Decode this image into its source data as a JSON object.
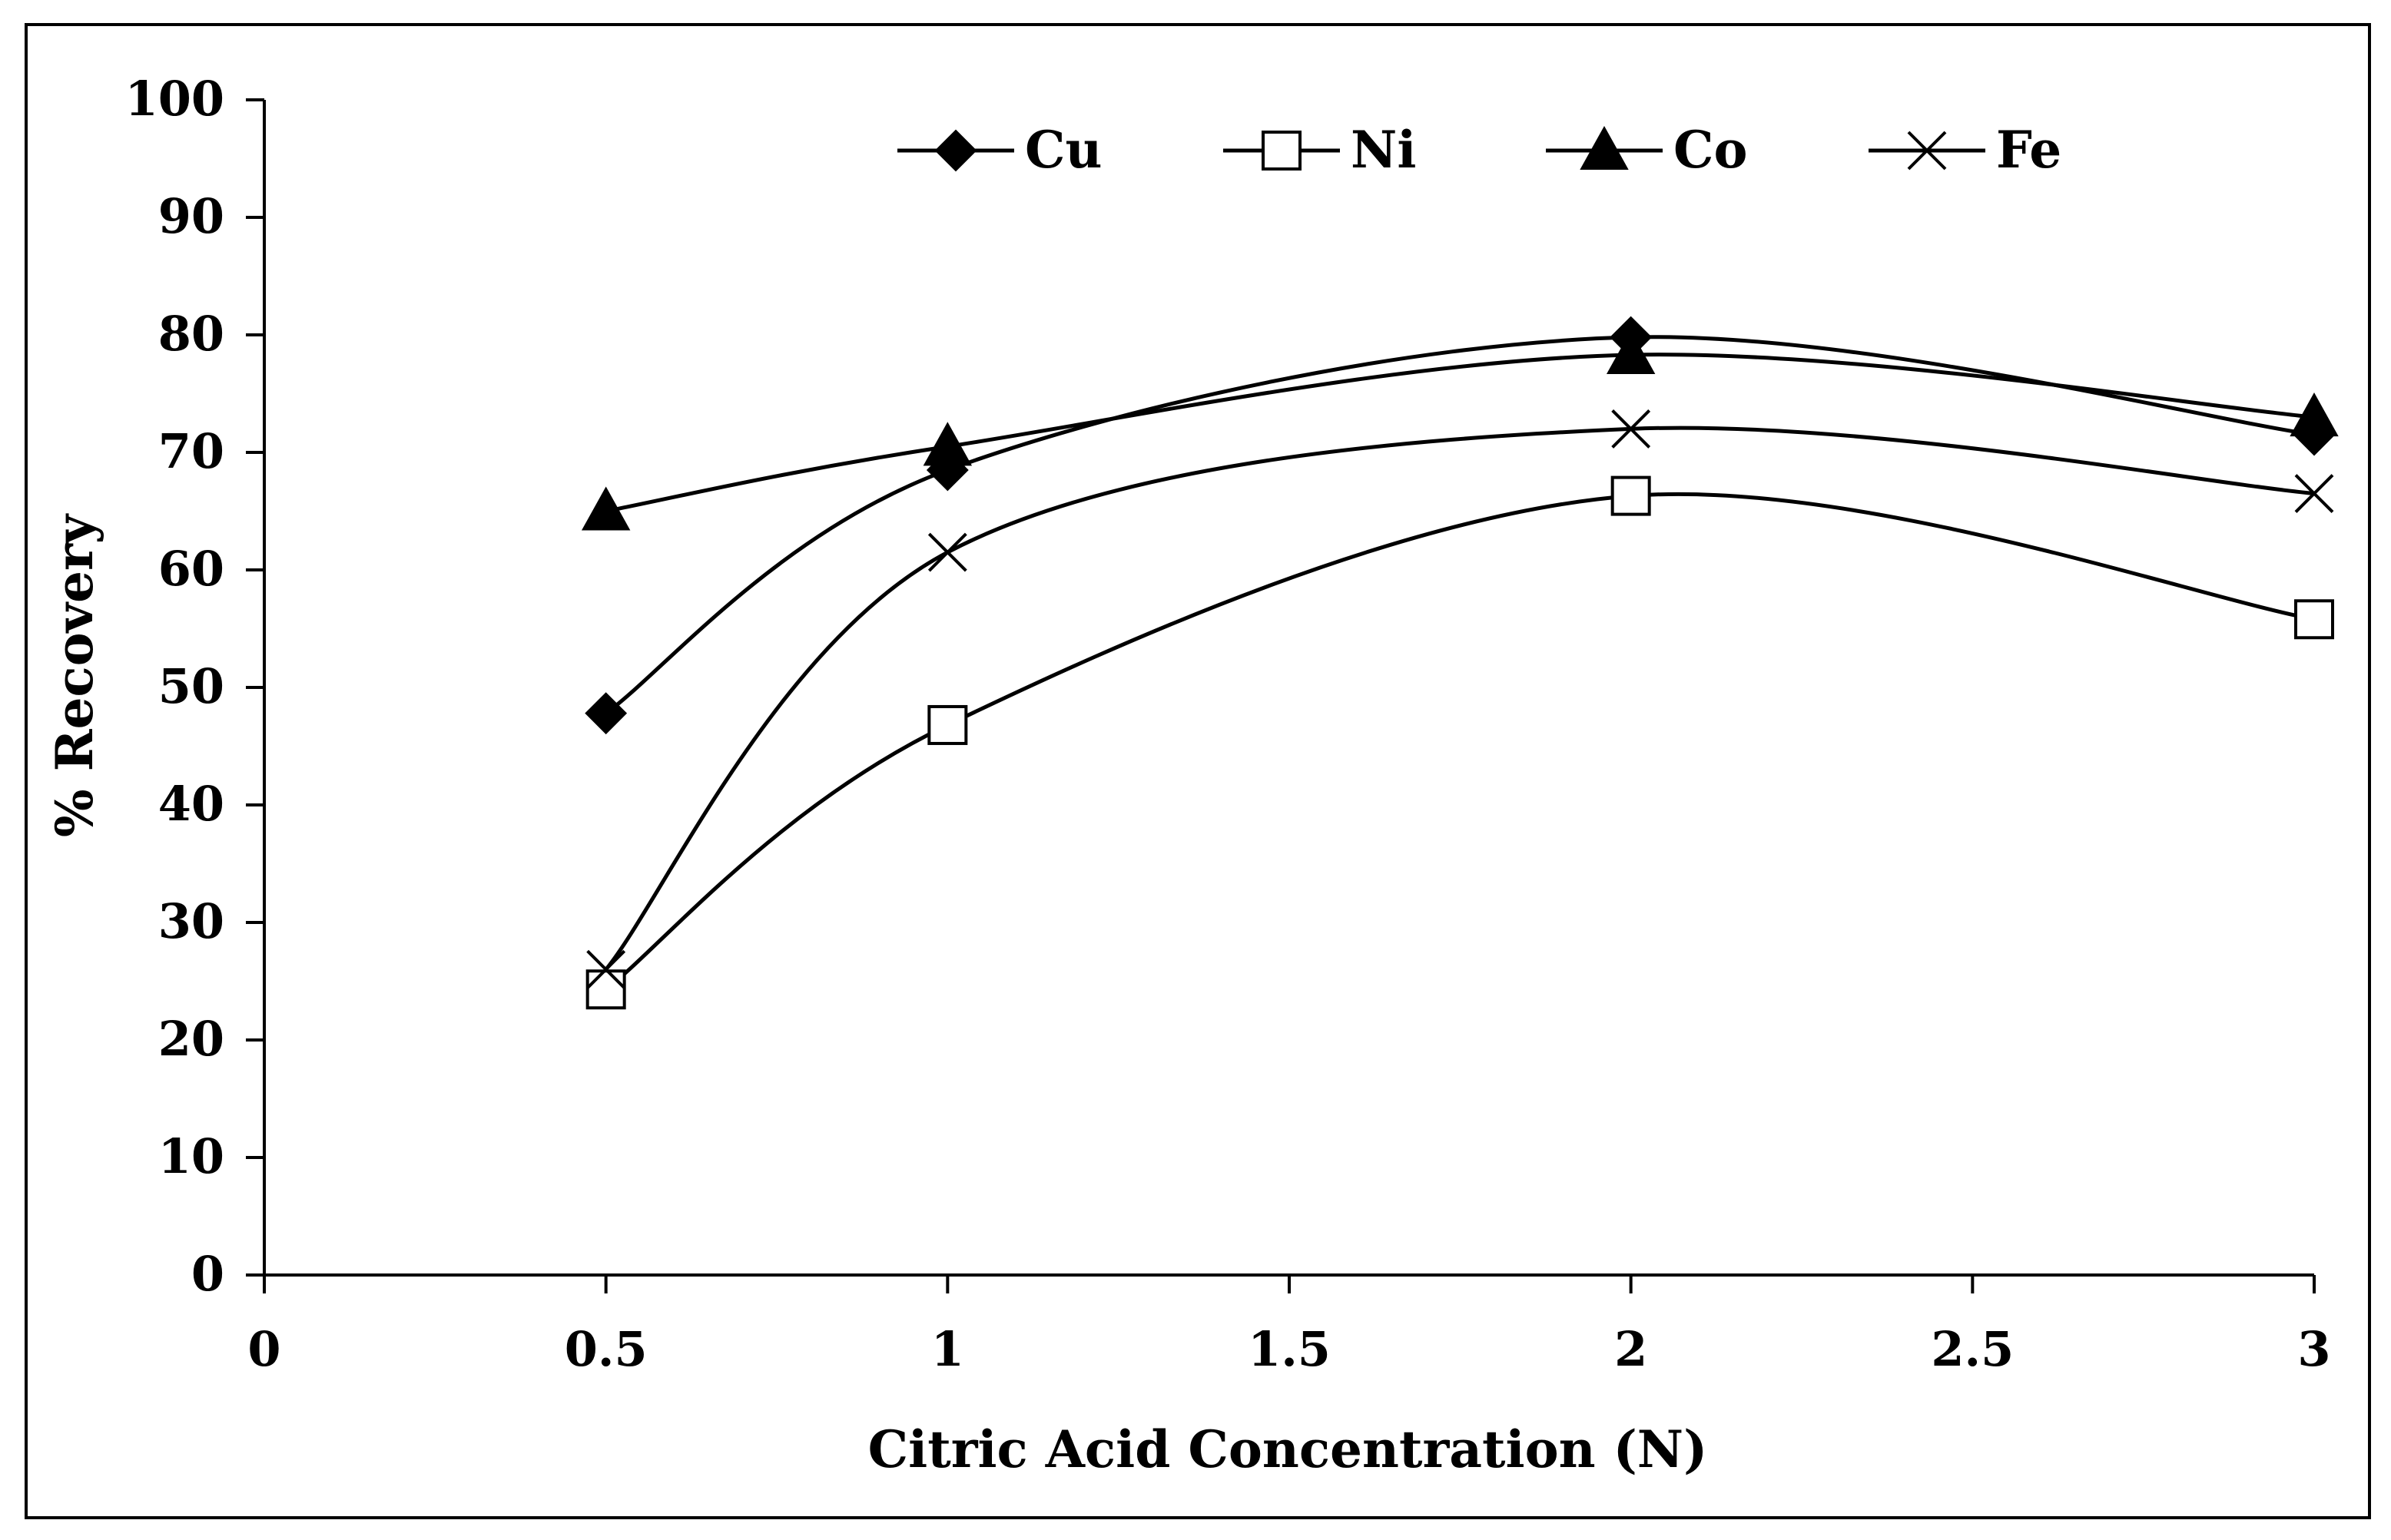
{
  "chart_data": {
    "type": "line",
    "title": "",
    "xlabel": "Citric Acid Concentration (N)",
    "ylabel": "% Recovery",
    "xlim": [
      0,
      3
    ],
    "ylim": [
      0,
      100
    ],
    "x_ticks": [
      "0",
      "0.5",
      "1",
      "1.5",
      "2",
      "2.5",
      "3"
    ],
    "y_ticks": [
      "0",
      "10",
      "20",
      "30",
      "40",
      "50",
      "60",
      "70",
      "80",
      "90",
      "100"
    ],
    "grid": false,
    "legend_position": "top",
    "x": [
      0.5,
      1,
      2,
      3
    ],
    "series": [
      {
        "name": "Cu",
        "marker": "diamond-filled",
        "values": [
          47.8,
          68.5,
          79.8,
          71.5
        ]
      },
      {
        "name": "Ni",
        "marker": "square-open",
        "values": [
          24.3,
          46.8,
          66.3,
          55.8
        ]
      },
      {
        "name": "Co",
        "marker": "triangle-filled",
        "values": [
          65.0,
          70.5,
          78.3,
          73.0
        ]
      },
      {
        "name": "Fe",
        "marker": "x",
        "values": [
          26.0,
          61.5,
          72.0,
          66.5
        ]
      }
    ]
  }
}
